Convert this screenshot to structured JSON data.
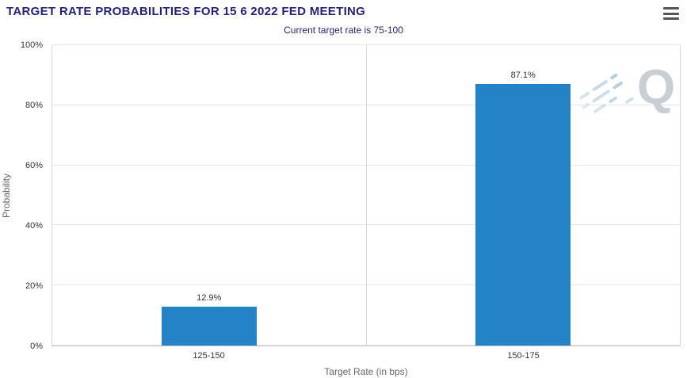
{
  "header": {
    "title": "TARGET RATE PROBABILITIES FOR 15 6 2022 FED MEETING",
    "menu_icon": "hamburger-icon"
  },
  "chart": {
    "subtitle": "Current target rate is 75-100",
    "ylabel": "Probability",
    "xlabel": "Target Rate (in bps)",
    "watermark_letter": "Q"
  },
  "chart_data": {
    "type": "bar",
    "title": "TARGET RATE PROBABILITIES FOR 15 6 2022 FED MEETING",
    "subtitle": "Current target rate is 75-100",
    "categories": [
      "125-150",
      "150-175"
    ],
    "values": [
      12.9,
      87.1
    ],
    "data_labels": [
      "12.9%",
      "87.1%"
    ],
    "xlabel": "Target Rate (in bps)",
    "ylabel": "Probability",
    "ylim": [
      0,
      100
    ],
    "yticks": [
      0,
      20,
      40,
      60,
      80,
      100
    ],
    "ytick_suffix": "%",
    "grid": true,
    "legend": "none",
    "bar_color": "#2383c4"
  },
  "colors": {
    "title": "#232278",
    "subtitle": "#232278",
    "bar": "#2383c4",
    "gridline": "#e6e6e6",
    "axis_line": "#c0c0c0",
    "tick_text": "#333333",
    "axis_title_text": "#666666",
    "watermark": "#c9ced3"
  }
}
